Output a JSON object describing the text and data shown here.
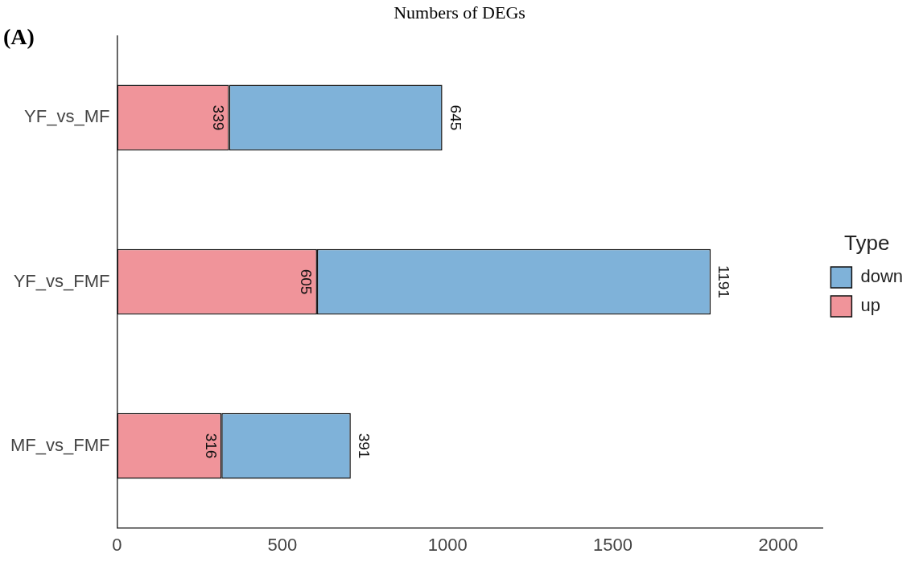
{
  "chart_data": {
    "type": "bar",
    "orientation": "horizontal",
    "stacked": true,
    "title": "Numbers of DEGs",
    "legend_title": "Type",
    "annotations": [
      "(A)"
    ],
    "categories": [
      "YF_vs_MF",
      "YF_vs_FMF",
      "MF_vs_FMF"
    ],
    "series": [
      {
        "name": "up",
        "color": "#f0949a",
        "values": [
          339,
          605,
          316
        ]
      },
      {
        "name": "down",
        "color": "#7fb2d9",
        "values": [
          645,
          1191,
          391
        ]
      }
    ],
    "xlim": [
      0,
      2135
    ],
    "xticks": [
      0,
      500,
      1000,
      1500,
      2000
    ],
    "grid": false,
    "legend": "right",
    "data_labels": true
  }
}
